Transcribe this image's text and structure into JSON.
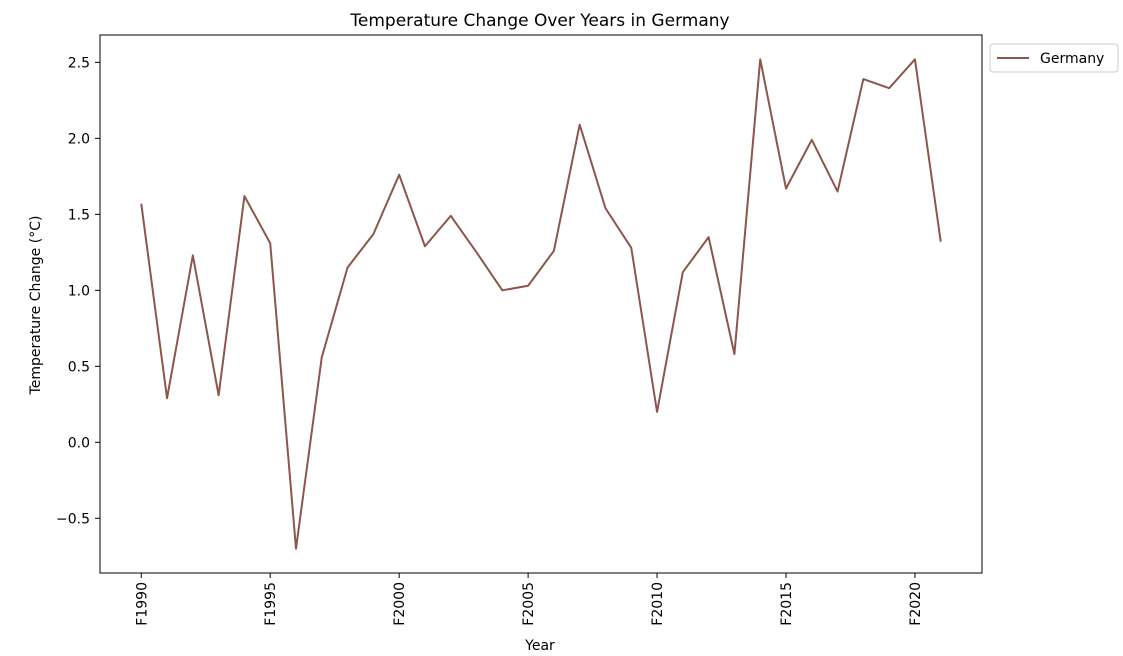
{
  "chart_data": {
    "type": "line",
    "title": "Temperature Change Over Years in Germany",
    "xlabel": "Year",
    "ylabel": "Temperature Change (°C)",
    "x": [
      1990,
      1991,
      1992,
      1993,
      1994,
      1995,
      1996,
      1997,
      1998,
      1999,
      2000,
      2001,
      2002,
      2003,
      2004,
      2005,
      2006,
      2007,
      2008,
      2009,
      2010,
      2011,
      2012,
      2013,
      2014,
      2015,
      2016,
      2017,
      2018,
      2019,
      2020,
      2021
    ],
    "x_tick_labels": [
      "F1990",
      "F1995",
      "F2000",
      "F2005",
      "F2010",
      "F2015",
      "F2020"
    ],
    "y_tick_labels": [
      "−0.5",
      "0.0",
      "0.5",
      "1.0",
      "1.5",
      "2.0",
      "2.5"
    ],
    "y_ticks": [
      -0.5,
      0.0,
      0.5,
      1.0,
      1.5,
      2.0,
      2.5
    ],
    "series": [
      {
        "name": "Germany",
        "color": "#8c564b",
        "values": [
          1.57,
          0.29,
          1.23,
          0.31,
          1.62,
          1.31,
          -0.7,
          0.56,
          1.15,
          1.37,
          1.76,
          1.29,
          1.49,
          1.25,
          1.0,
          1.03,
          1.26,
          2.09,
          1.54,
          1.28,
          0.2,
          1.12,
          1.35,
          0.58,
          2.52,
          1.67,
          1.99,
          1.65,
          2.39,
          2.33,
          2.52,
          1.32
        ]
      }
    ],
    "xlim": [
      1988.4,
      2022.6
    ],
    "ylim": [
      -0.86,
      2.68
    ],
    "grid": false,
    "legend_position": "outside-top-right"
  }
}
